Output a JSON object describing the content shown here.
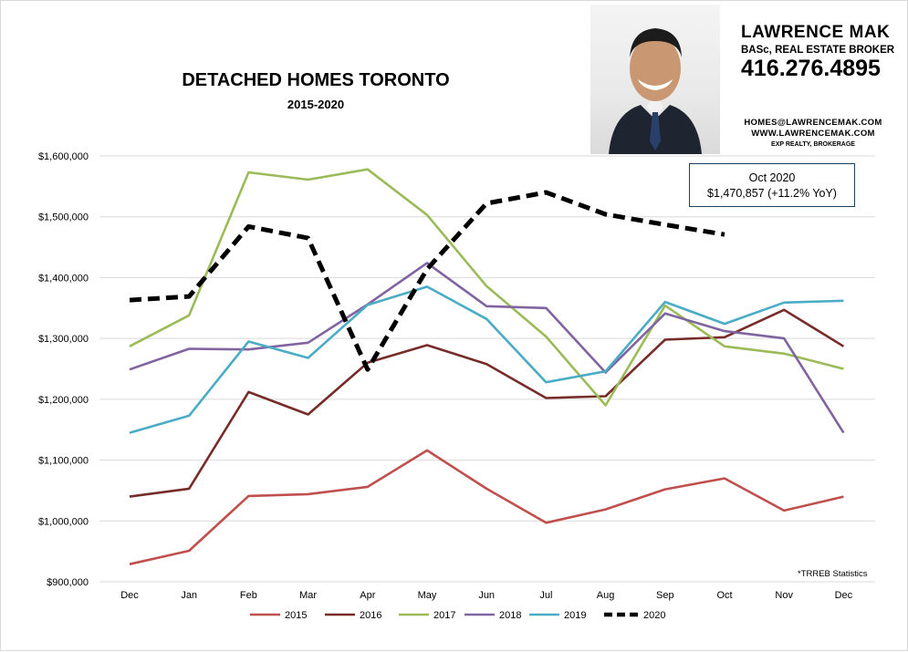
{
  "header": {
    "title": "DETACHED HOMES TORONTO",
    "subtitle": "2015-2020"
  },
  "broker": {
    "name": "LAWRENCE MAK",
    "title": "BASc, REAL ESTATE BROKER",
    "phone": "416.276.4895",
    "email": "HOMES@LAWRENCEMAK.COM",
    "website": "WWW.LAWRENCEMAK.COM",
    "brokerage": "EXP REALTY, BROKERAGE"
  },
  "callout": {
    "line1": "Oct 2020",
    "line2": "$1,470,857 (+11.2% YoY)"
  },
  "source_note": "*TRREB Statistics",
  "colors": {
    "2015": "#c0504d",
    "2016": "#772c2a",
    "2017": "#9bbb59",
    "2018": "#8064a2",
    "2019": "#4bacc6",
    "2020": "#000000",
    "grid": "#d9d9d9"
  },
  "chart_data": {
    "type": "line",
    "title": "DETACHED HOMES TORONTO",
    "subtitle": "2015-2020",
    "categories": [
      "Dec",
      "Jan",
      "Feb",
      "Mar",
      "Apr",
      "May",
      "Jun",
      "Jul",
      "Aug",
      "Sep",
      "Oct",
      "Nov",
      "Dec"
    ],
    "ylim": [
      900000,
      1600000
    ],
    "yticks": [
      900000,
      1000000,
      1100000,
      1200000,
      1300000,
      1400000,
      1500000,
      1600000
    ],
    "ytick_labels": [
      "$900,000",
      "$1,000,000",
      "$1,100,000",
      "$1,200,000",
      "$1,300,000",
      "$1,400,000",
      "$1,500,000",
      "$1,600,000"
    ],
    "grid": true,
    "legend": "bottom",
    "series": [
      {
        "name": "2015",
        "color": "#c0504d",
        "dashed": false,
        "values": [
          929000,
          951000,
          1041000,
          1044000,
          1056000,
          1116000,
          1053000,
          997000,
          1019000,
          1052000,
          1070000,
          1017000,
          1040000
        ]
      },
      {
        "name": "2016",
        "color": "#772c2a",
        "dashed": false,
        "values": [
          1040000,
          1053000,
          1212000,
          1175000,
          1260000,
          1289000,
          1258000,
          1202000,
          1205000,
          1298000,
          1302000,
          1347000,
          1287000
        ]
      },
      {
        "name": "2017",
        "color": "#9bbb59",
        "dashed": false,
        "values": [
          1287000,
          1338000,
          1573000,
          1561000,
          1578000,
          1503000,
          1386000,
          1303000,
          1190000,
          1354000,
          1287000,
          1275000,
          1250000
        ]
      },
      {
        "name": "2018",
        "color": "#8064a2",
        "dashed": false,
        "values": [
          1249000,
          1283000,
          1282000,
          1293000,
          1356000,
          1424000,
          1353000,
          1350000,
          1244000,
          1341000,
          1312000,
          1300000,
          1145000
        ]
      },
      {
        "name": "2019",
        "color": "#4bacc6",
        "dashed": false,
        "values": [
          1145000,
          1173000,
          1295000,
          1268000,
          1355000,
          1385000,
          1332000,
          1228000,
          1246000,
          1360000,
          1324000,
          1359000,
          1362000
        ]
      },
      {
        "name": "2020",
        "color": "#000000",
        "dashed": true,
        "values": [
          1363000,
          1369000,
          1484000,
          1465000,
          1249000,
          1414000,
          1522000,
          1540000,
          1504000,
          1487000,
          1470857,
          null,
          null
        ]
      }
    ]
  }
}
